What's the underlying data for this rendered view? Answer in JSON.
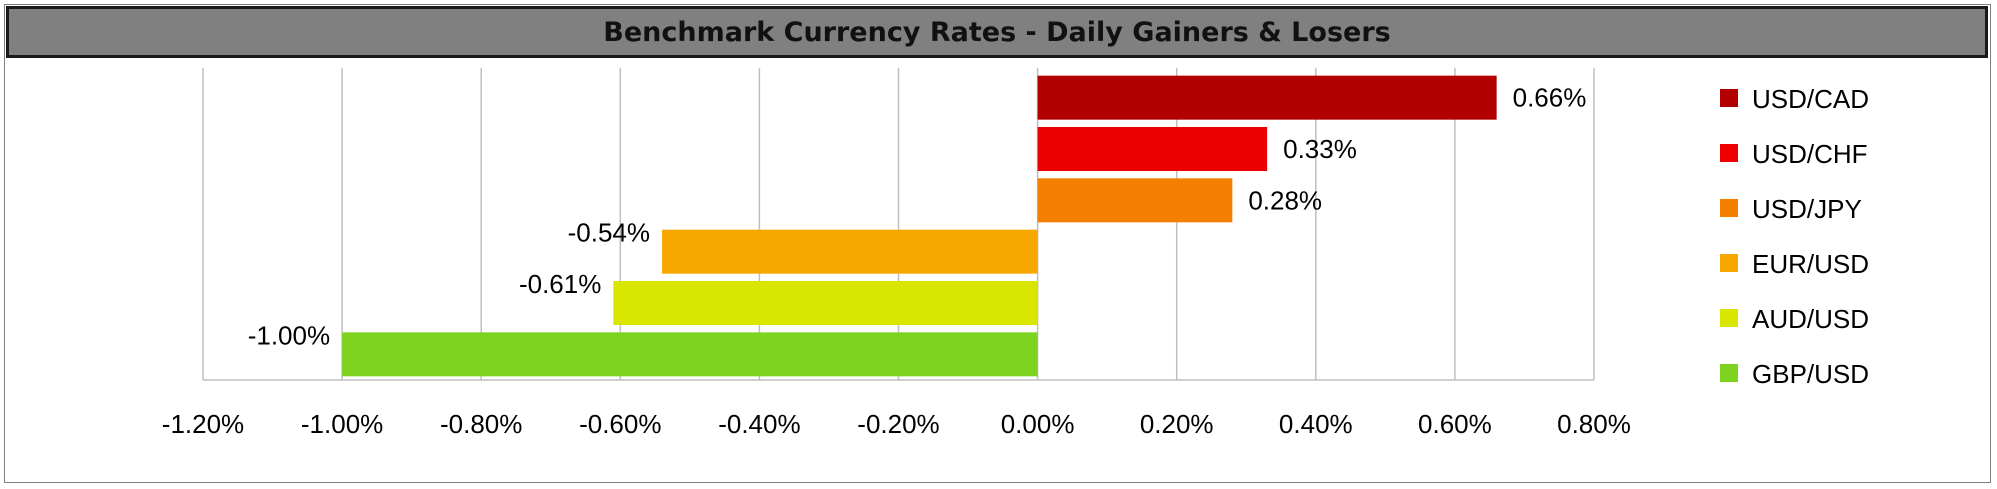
{
  "chart_data": {
    "type": "bar",
    "orientation": "horizontal",
    "title": "Benchmark Currency Rates - Daily Gainers & Losers",
    "categories": [
      "USD/CAD",
      "USD/CHF",
      "USD/JPY",
      "EUR/USD",
      "AUD/USD",
      "GBP/USD"
    ],
    "values": [
      0.66,
      0.33,
      0.28,
      -0.54,
      -0.61,
      -1.0
    ],
    "data_labels": [
      "0.66%",
      "0.33%",
      "0.28%",
      "-0.54%",
      "-0.61%",
      "-1.00%"
    ],
    "colors": [
      "#b20000",
      "#ee0000",
      "#f47f00",
      "#f6a800",
      "#d8e600",
      "#7ed320"
    ],
    "xlim": [
      -1.2,
      0.8
    ],
    "xticks": [
      -1.2,
      -1.0,
      -0.8,
      -0.6,
      -0.4,
      -0.2,
      0.0,
      0.2,
      0.4,
      0.6,
      0.8
    ],
    "xtick_labels": [
      "-1.20%",
      "-1.00%",
      "-0.80%",
      "-0.60%",
      "-0.40%",
      "-0.20%",
      "0.00%",
      "0.20%",
      "0.40%",
      "0.60%",
      "0.80%"
    ],
    "grid": "vertical",
    "legend": "right"
  }
}
